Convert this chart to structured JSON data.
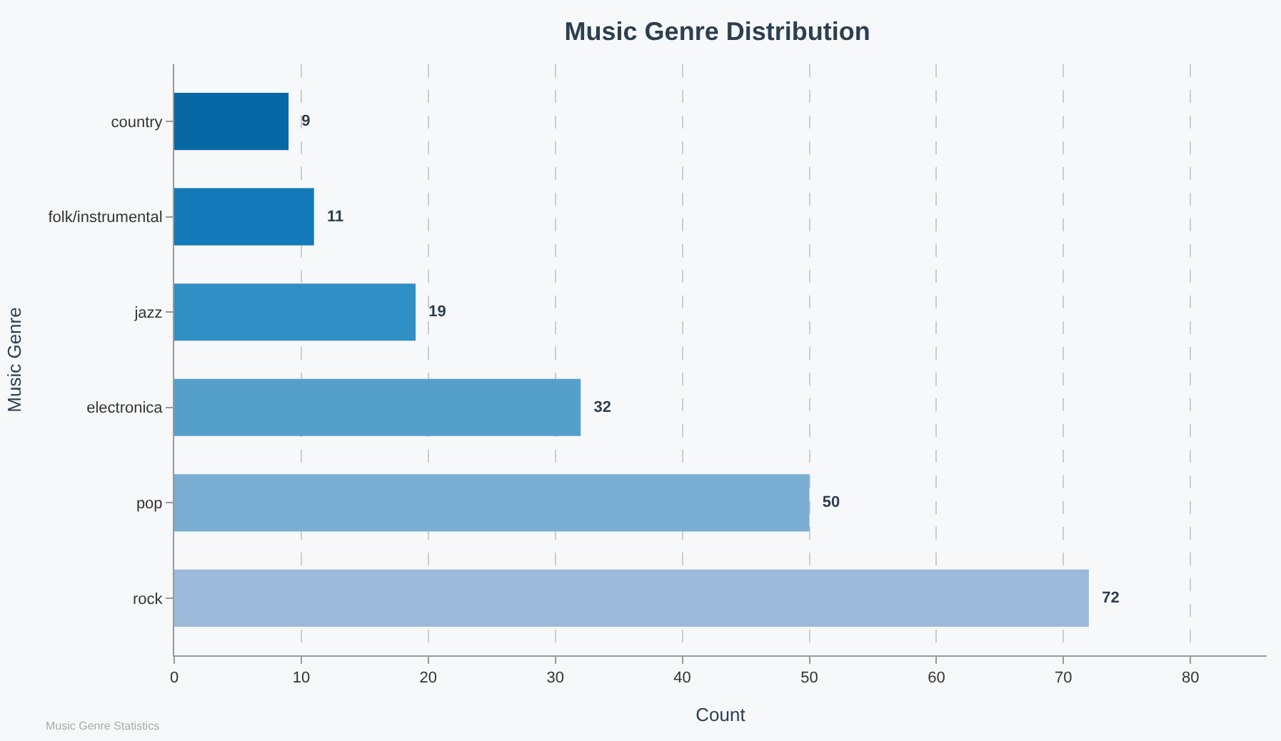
{
  "chart_data": {
    "type": "bar",
    "orientation": "horizontal",
    "title": "Music Genre Distribution",
    "xlabel": "Count",
    "ylabel": "Music Genre",
    "categories": [
      "country",
      "folk/instrumental",
      "jazz",
      "electronica",
      "pop",
      "rock"
    ],
    "values": [
      9,
      11,
      19,
      32,
      50,
      72
    ],
    "colors": [
      "#0868a6",
      "#1479b8",
      "#308fc4",
      "#55a0cb",
      "#7aadd2",
      "#9bbad9"
    ],
    "xlim": [
      0,
      86
    ],
    "xticks": [
      0,
      10,
      20,
      30,
      40,
      50,
      60,
      70,
      80
    ],
    "grid": "x",
    "data_labels": true,
    "annotations": [
      "Music Genre Statistics"
    ]
  }
}
